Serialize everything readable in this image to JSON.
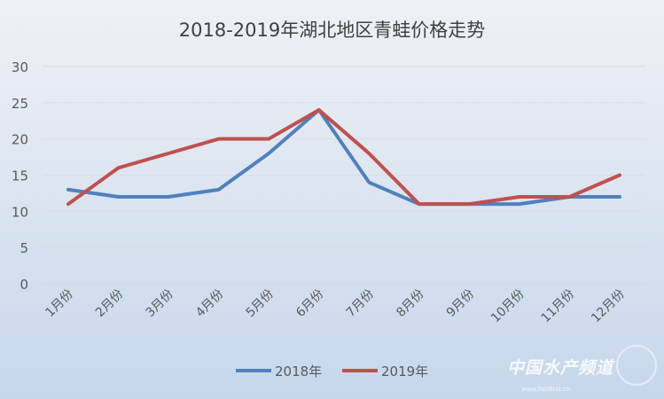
{
  "chart_data": {
    "type": "line",
    "title": "2018-2019年湖北地区青蛙价格走势",
    "categories": [
      "1月份",
      "2月份",
      "3月份",
      "4月份",
      "5月份",
      "6月份",
      "7月份",
      "8月份",
      "9月份",
      "10月份",
      "11月份",
      "12月份"
    ],
    "series": [
      {
        "name": "2018年",
        "color": "#4f81bd",
        "values": [
          13,
          12,
          12,
          13,
          18,
          24,
          14,
          11,
          11,
          11,
          12,
          12
        ]
      },
      {
        "name": "2019年",
        "color": "#c0504d",
        "values": [
          11,
          16,
          18,
          20,
          20,
          24,
          18,
          11,
          11,
          12,
          12,
          15
        ]
      }
    ],
    "ylim": [
      0,
      30
    ],
    "yticks": [
      0,
      5,
      10,
      15,
      20,
      25,
      30
    ],
    "grid": true,
    "legend": "bottom"
  },
  "watermark": {
    "text": "中国水产频道",
    "url": "www.fishfirst.cn"
  }
}
